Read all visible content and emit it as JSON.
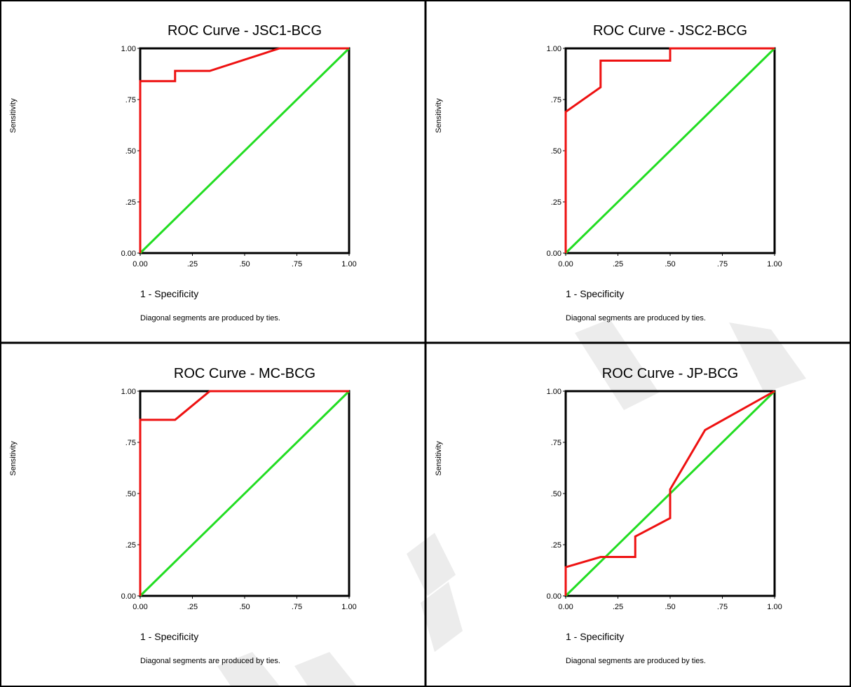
{
  "panels": [
    {
      "title": "ROC Curve - JSC1-BCG",
      "chart_data": {
        "type": "line",
        "xlabel": "1 - Specificity",
        "ylabel": "Sensitivity",
        "xlim": [
          0,
          1
        ],
        "ylim": [
          0,
          1
        ],
        "x_ticks": [
          "0.00",
          ".25",
          ".50",
          ".75",
          "1.00"
        ],
        "y_ticks": [
          "0.00",
          ".25",
          ".50",
          ".75",
          "1.00"
        ],
        "series": [
          {
            "color": "#ee1111",
            "points": [
              [
                0,
                0
              ],
              [
                0,
                0.84
              ],
              [
                0.167,
                0.84
              ],
              [
                0.167,
                0.89
              ],
              [
                0.333,
                0.89
              ],
              [
                0.667,
                1.0
              ],
              [
                1.0,
                1.0
              ]
            ]
          },
          {
            "color": "#22dd22",
            "points": [
              [
                0,
                0
              ],
              [
                1,
                1
              ]
            ]
          }
        ]
      },
      "footnote": "Diagonal segments are produced by ties."
    },
    {
      "title": "ROC Curve - JSC2-BCG",
      "chart_data": {
        "type": "line",
        "xlabel": "1 - Specificity",
        "ylabel": "Sensitivity",
        "xlim": [
          0,
          1
        ],
        "ylim": [
          0,
          1
        ],
        "x_ticks": [
          "0.00",
          ".25",
          ".50",
          ".75",
          "1.00"
        ],
        "y_ticks": [
          "0.00",
          ".25",
          ".50",
          ".75",
          "1.00"
        ],
        "series": [
          {
            "color": "#ee1111",
            "points": [
              [
                0,
                0
              ],
              [
                0,
                0.69
              ],
              [
                0.167,
                0.81
              ],
              [
                0.167,
                0.94
              ],
              [
                0.5,
                0.94
              ],
              [
                0.5,
                1.0
              ],
              [
                1.0,
                1.0
              ]
            ]
          },
          {
            "color": "#22dd22",
            "points": [
              [
                0,
                0
              ],
              [
                1,
                1
              ]
            ]
          }
        ]
      },
      "footnote": "Diagonal segments are produced by ties."
    },
    {
      "title": "ROC Curve - MC-BCG",
      "chart_data": {
        "type": "line",
        "xlabel": "1 - Specificity",
        "ylabel": "Sensitivity",
        "xlim": [
          0,
          1
        ],
        "ylim": [
          0,
          1
        ],
        "x_ticks": [
          "0.00",
          ".25",
          ".50",
          ".75",
          "1.00"
        ],
        "y_ticks": [
          "0.00",
          ".25",
          ".50",
          ".75",
          "1.00"
        ],
        "series": [
          {
            "color": "#ee1111",
            "points": [
              [
                0,
                0
              ],
              [
                0,
                0.86
              ],
              [
                0.167,
                0.86
              ],
              [
                0.333,
                1.0
              ],
              [
                1.0,
                1.0
              ]
            ]
          },
          {
            "color": "#22dd22",
            "points": [
              [
                0,
                0
              ],
              [
                1,
                1
              ]
            ]
          }
        ]
      },
      "footnote": "Diagonal segments are produced by ties."
    },
    {
      "title": "ROC Curve - JP-BCG",
      "chart_data": {
        "type": "line",
        "xlabel": "1 - Specificity",
        "ylabel": "Sensitivity",
        "xlim": [
          0,
          1
        ],
        "ylim": [
          0,
          1
        ],
        "x_ticks": [
          "0.00",
          ".25",
          ".50",
          ".75",
          "1.00"
        ],
        "y_ticks": [
          "0.00",
          ".25",
          ".50",
          ".75",
          "1.00"
        ],
        "series": [
          {
            "color": "#ee1111",
            "points": [
              [
                0,
                0
              ],
              [
                0,
                0.14
              ],
              [
                0.167,
                0.19
              ],
              [
                0.333,
                0.19
              ],
              [
                0.333,
                0.29
              ],
              [
                0.5,
                0.38
              ],
              [
                0.5,
                0.52
              ],
              [
                0.667,
                0.81
              ],
              [
                1.0,
                1.0
              ]
            ]
          },
          {
            "color": "#22dd22",
            "points": [
              [
                0,
                0
              ],
              [
                1,
                1
              ]
            ]
          }
        ]
      },
      "footnote": "Diagonal segments are produced by ties."
    }
  ]
}
